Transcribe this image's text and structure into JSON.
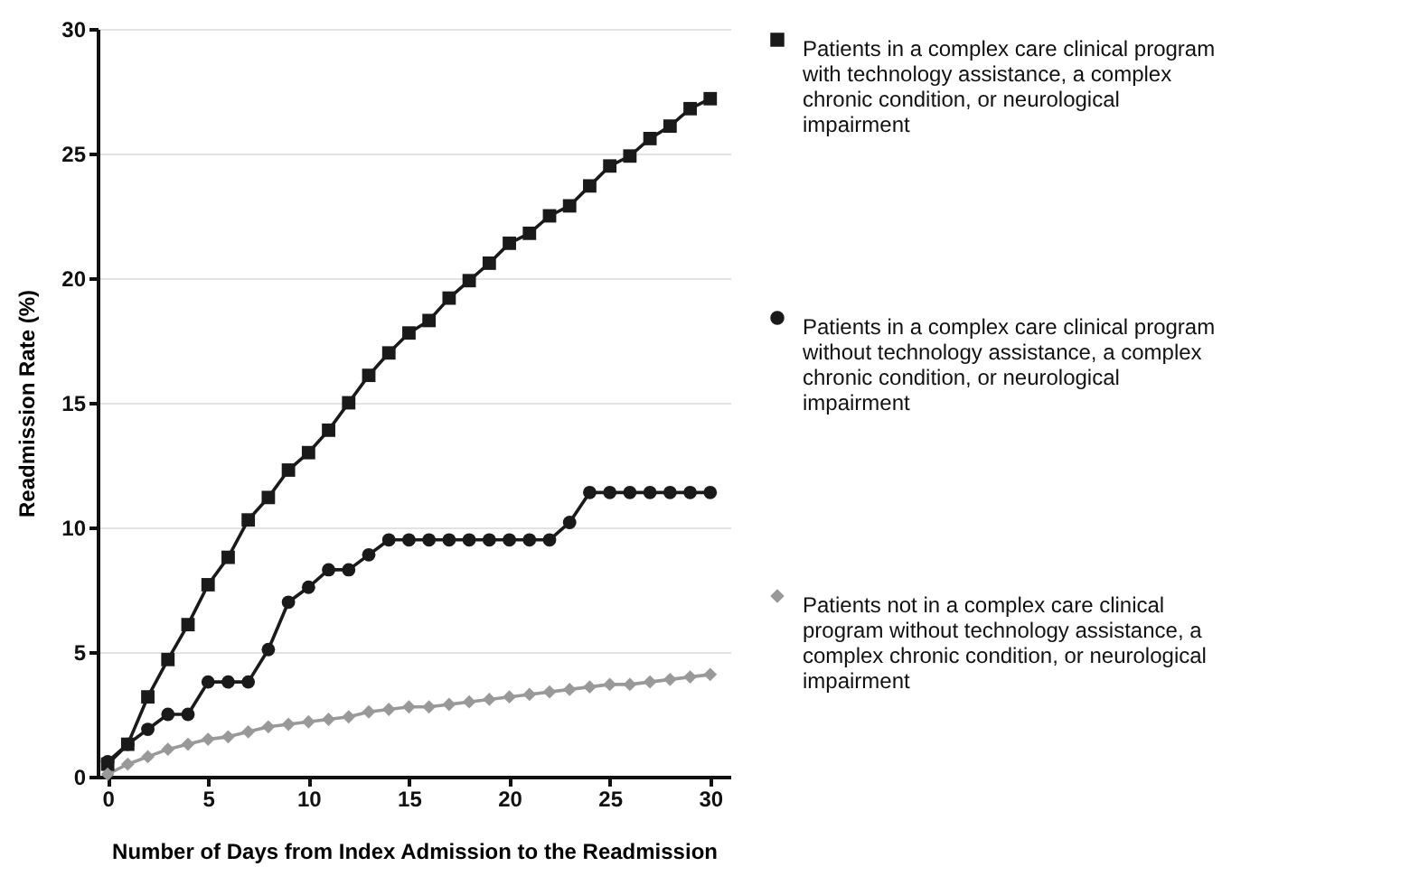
{
  "chart_data": {
    "type": "line",
    "xlabel": "Number of Days from Index Admission to the Readmission",
    "ylabel": "Readmission Rate (%)",
    "x": [
      0,
      1,
      2,
      3,
      4,
      5,
      6,
      7,
      8,
      9,
      10,
      11,
      12,
      13,
      14,
      15,
      16,
      17,
      18,
      19,
      20,
      21,
      22,
      23,
      24,
      25,
      26,
      27,
      28,
      29,
      30
    ],
    "xlim": [
      -0.5,
      31
    ],
    "xticks": [
      0,
      5,
      10,
      15,
      20,
      25,
      30
    ],
    "ylim": [
      0,
      30
    ],
    "yticks": [
      0,
      5,
      10,
      15,
      20,
      25,
      30
    ],
    "grid": "y",
    "legend": "right",
    "line_style": "solid",
    "series": [
      {
        "name": "Patients in a complex care clinical program with technology assistance, a complex chronic condition, or neurological impairment",
        "color": "#1a1a1a",
        "marker": "square",
        "values": [
          0.5,
          1.3,
          3.2,
          4.7,
          6.1,
          7.7,
          8.8,
          10.3,
          11.2,
          12.3,
          13.0,
          13.9,
          15.0,
          16.1,
          17.0,
          17.8,
          18.3,
          19.2,
          19.9,
          20.6,
          21.4,
          21.8,
          22.5,
          22.9,
          23.7,
          24.5,
          24.9,
          25.6,
          26.1,
          26.8,
          27.2
        ]
      },
      {
        "name": "Patients in a complex care clinical program without technology assistance, a complex chronic condition, or neurological impairment",
        "color": "#1a1a1a",
        "marker": "circle",
        "values": [
          0.6,
          1.3,
          1.9,
          2.5,
          2.5,
          3.8,
          3.8,
          3.8,
          5.1,
          7.0,
          7.6,
          8.3,
          8.3,
          8.9,
          9.5,
          9.5,
          9.5,
          9.5,
          9.5,
          9.5,
          9.5,
          9.5,
          9.5,
          10.2,
          11.4,
          11.4,
          11.4,
          11.4,
          11.4,
          11.4,
          11.4
        ]
      },
      {
        "name": "Patients not in a complex care clinical program without technology assistance, a complex chronic condition, or neurological impairment",
        "color": "#999999",
        "marker": "diamond",
        "values": [
          0.1,
          0.5,
          0.8,
          1.1,
          1.3,
          1.5,
          1.6,
          1.8,
          2.0,
          2.1,
          2.2,
          2.3,
          2.4,
          2.6,
          2.7,
          2.8,
          2.8,
          2.9,
          3.0,
          3.1,
          3.2,
          3.3,
          3.4,
          3.5,
          3.6,
          3.7,
          3.7,
          3.8,
          3.9,
          4.0,
          4.1
        ]
      }
    ]
  }
}
